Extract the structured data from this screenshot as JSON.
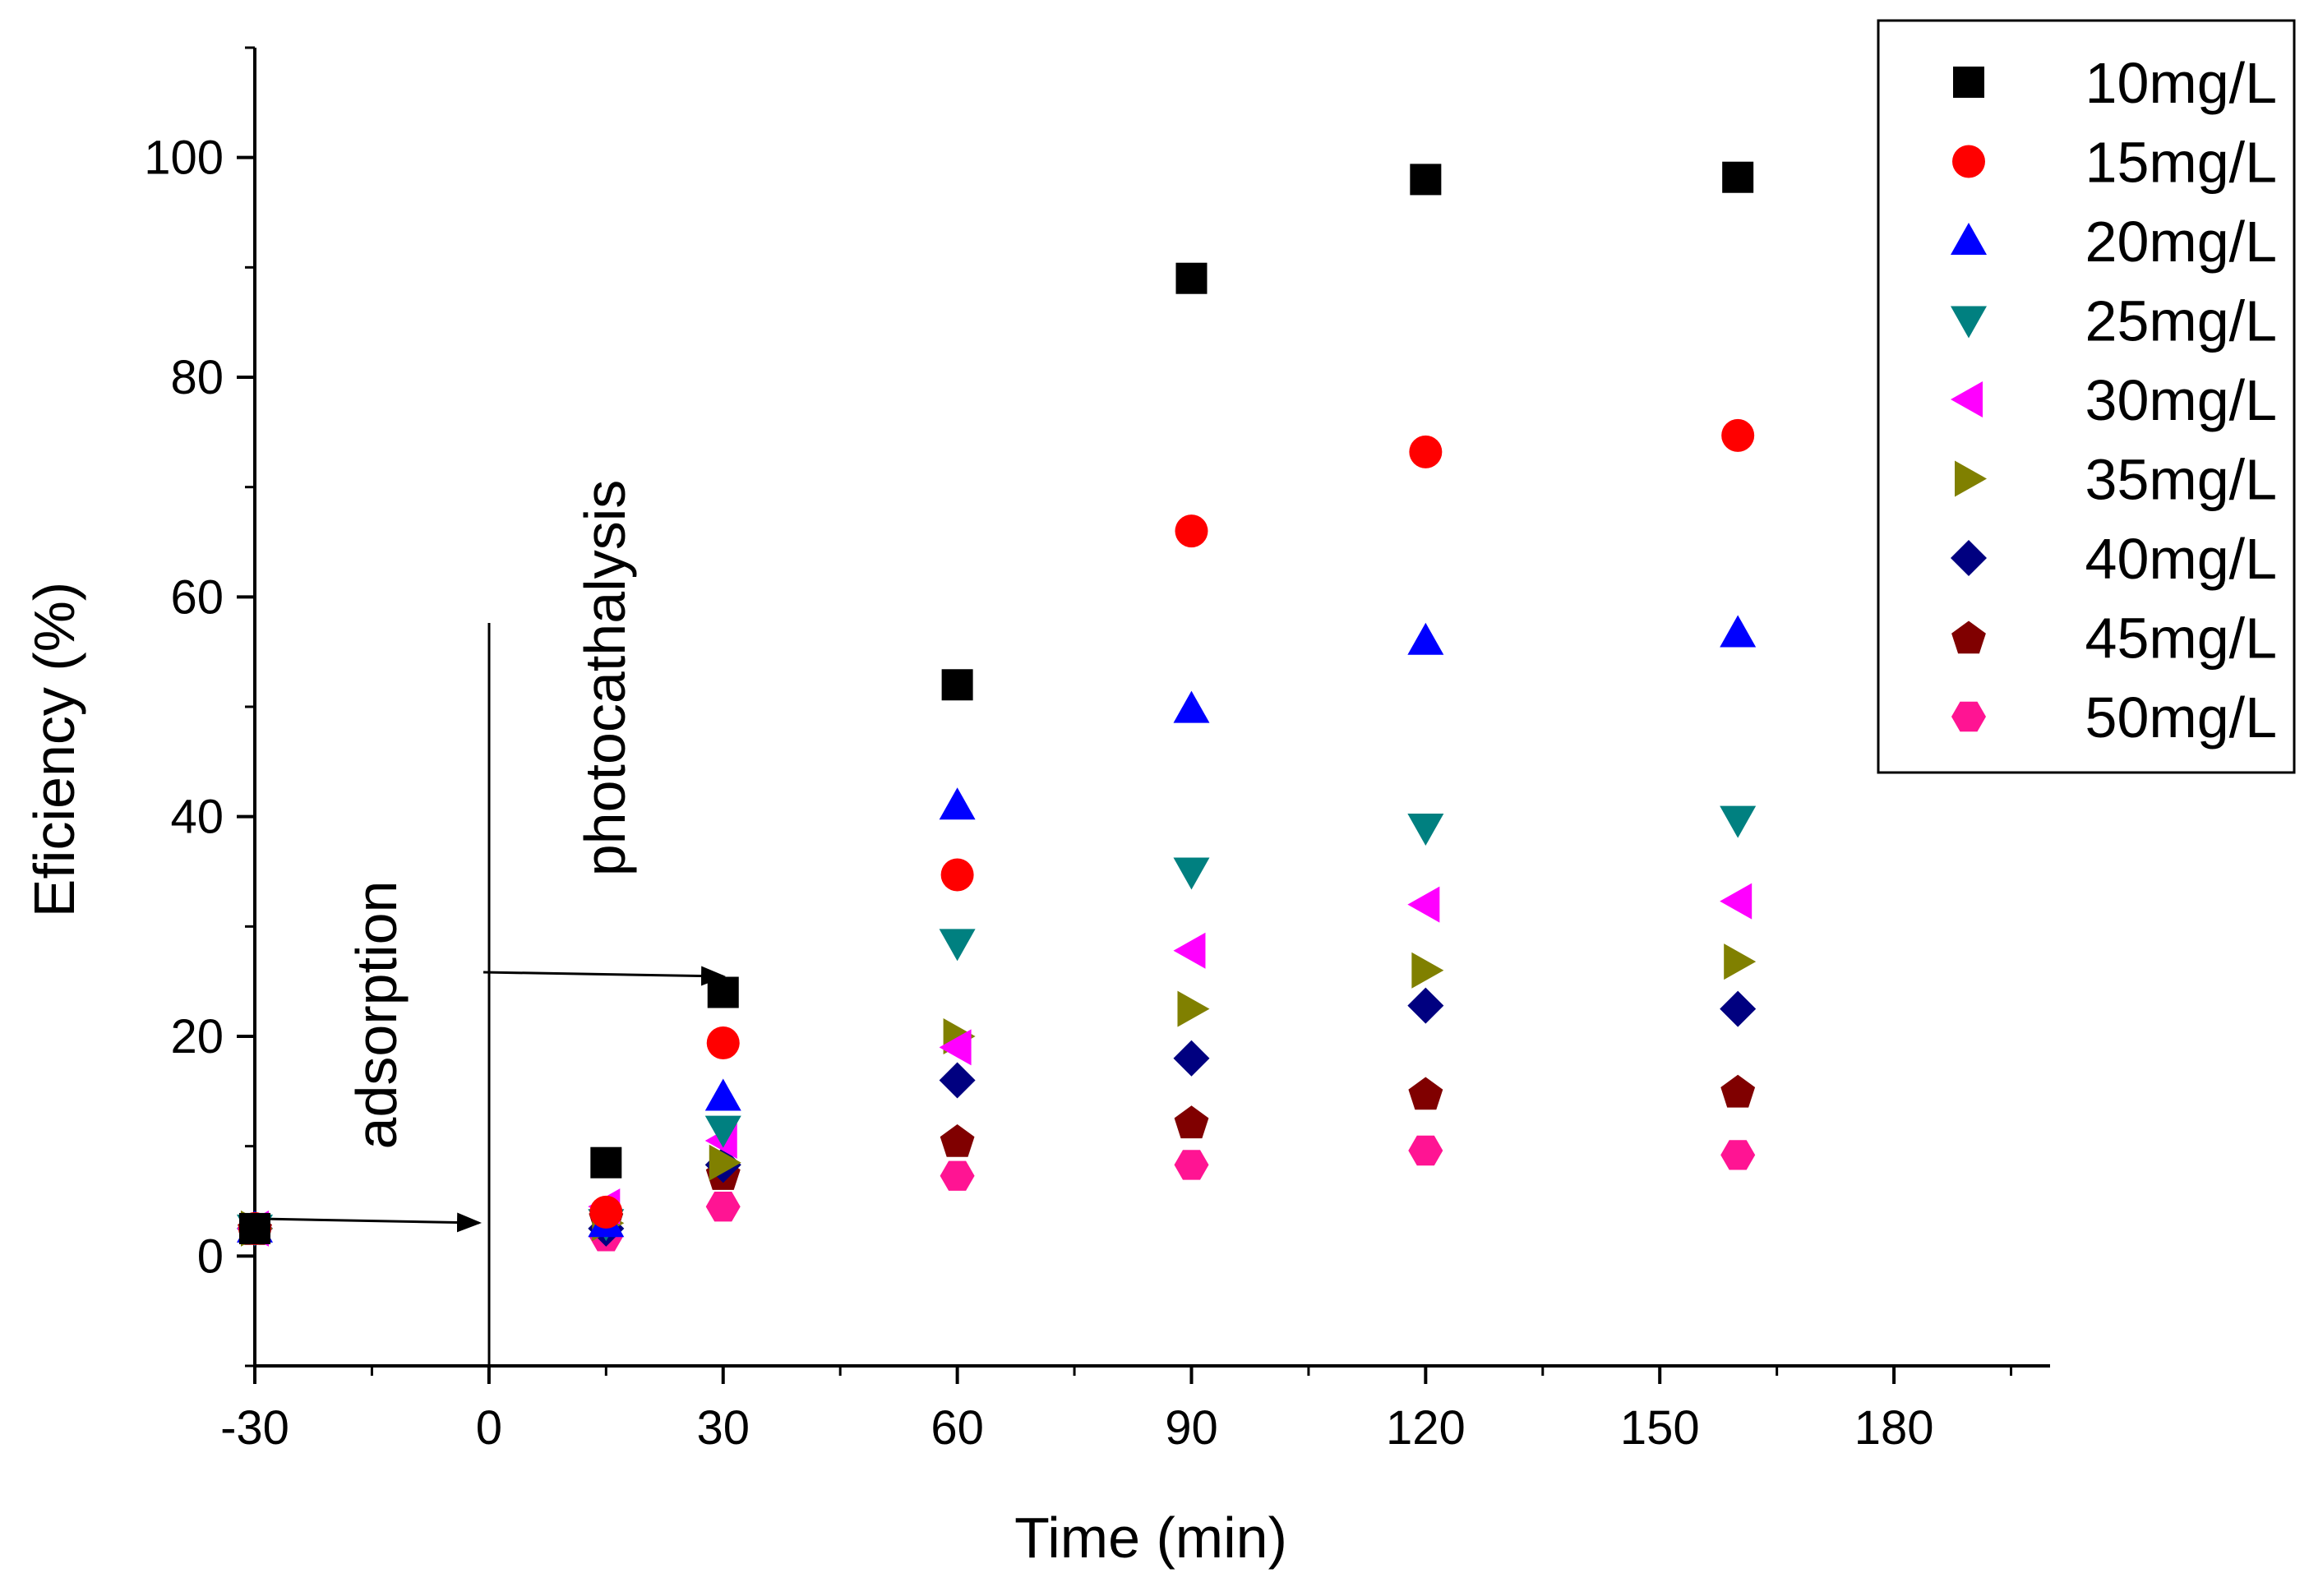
{
  "chart_data": {
    "type": "scatter",
    "title": "",
    "xlabel": "Time (min)",
    "ylabel": "Eficiency (%)",
    "xlim": [
      -30,
      200
    ],
    "ylim": [
      -10,
      110
    ],
    "xticks": [
      -30,
      0,
      30,
      60,
      90,
      120,
      150,
      180
    ],
    "yticks": [
      0,
      20,
      40,
      60,
      80,
      100
    ],
    "grid": false,
    "legend_position": "top-right",
    "annotations": [
      "adsorption",
      "photocathalysis"
    ],
    "series": [
      {
        "name": "10mg/L",
        "marker": "square",
        "color": "#000000",
        "x": [
          -30,
          15,
          30,
          60,
          90,
          120,
          160
        ],
        "y": [
          2.5,
          8.5,
          24,
          52,
          89,
          98,
          98.2
        ]
      },
      {
        "name": "15mg/L",
        "marker": "circle",
        "color": "#ff0000",
        "x": [
          -30,
          15,
          30,
          60,
          90,
          120,
          160
        ],
        "y": [
          2.5,
          4,
          19.4,
          34.7,
          66,
          73.2,
          74.7
        ]
      },
      {
        "name": "20mg/L",
        "marker": "triangle-up",
        "color": "#0000ff",
        "x": [
          -30,
          15,
          30,
          60,
          90,
          120,
          160
        ],
        "y": [
          2.5,
          3,
          14.5,
          41,
          49.8,
          56,
          56.7
        ]
      },
      {
        "name": "25mg/L",
        "marker": "triangle-down",
        "color": "#008080",
        "x": [
          -30,
          15,
          30,
          60,
          90,
          120,
          160
        ],
        "y": [
          2.5,
          3,
          11.5,
          28.5,
          35,
          39,
          39.7
        ]
      },
      {
        "name": "30mg/L",
        "marker": "triangle-left",
        "color": "#ff00ff",
        "x": [
          -30,
          15,
          30,
          60,
          90,
          120,
          160
        ],
        "y": [
          2.5,
          4.5,
          10.5,
          19,
          27.8,
          32,
          32.3
        ]
      },
      {
        "name": "35mg/L",
        "marker": "triangle-right",
        "color": "#808000",
        "x": [
          -30,
          15,
          30,
          60,
          90,
          120,
          160
        ],
        "y": [
          2.5,
          3,
          8.5,
          20,
          22.5,
          26,
          26.8
        ]
      },
      {
        "name": "40mg/L",
        "marker": "diamond",
        "color": "#000080",
        "x": [
          -30,
          15,
          30,
          60,
          90,
          120,
          160
        ],
        "y": [
          2.5,
          2.5,
          8.3,
          16,
          18,
          22.8,
          22.5
        ]
      },
      {
        "name": "45mg/L",
        "marker": "pentagon",
        "color": "#800000",
        "x": [
          -30,
          15,
          30,
          60,
          90,
          120,
          160
        ],
        "y": [
          2.5,
          3.5,
          7.5,
          10.5,
          12.2,
          14.8,
          15
        ]
      },
      {
        "name": "50mg/L",
        "marker": "hexagon",
        "color": "#ff1493",
        "x": [
          -30,
          15,
          30,
          60,
          90,
          120,
          160
        ],
        "y": [
          2.5,
          1.8,
          4.5,
          7.3,
          8.3,
          9.6,
          9.2
        ]
      }
    ]
  }
}
